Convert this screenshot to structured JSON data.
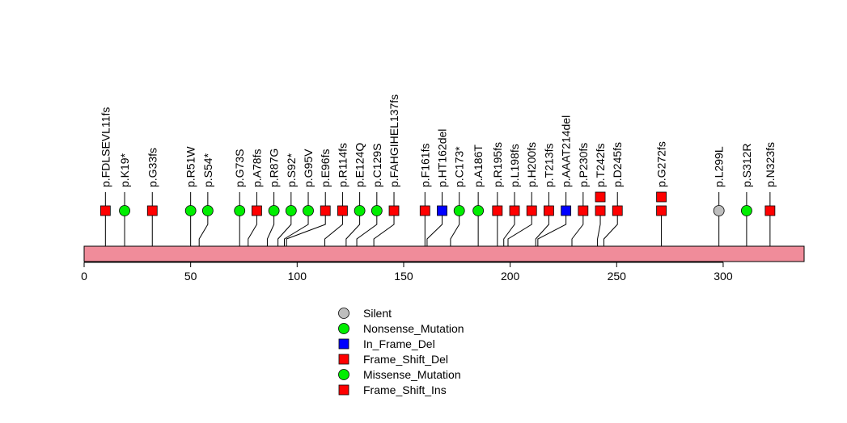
{
  "chart_data": {
    "type": "lollipop",
    "protein_length": 338,
    "x_axis": {
      "min": 0,
      "max": 338,
      "ticks": [
        0,
        50,
        100,
        150,
        200,
        250,
        300
      ]
    },
    "colors": {
      "protein_bar": "#f08c9a",
      "Silent": "#bebebe",
      "Nonsense_Mutation": "#00ee00",
      "In_Frame_Del": "#0000ff",
      "Frame_Shift_Del": "#ff0000",
      "Missense_Mutation": "#00ee00",
      "Frame_Shift_Ins": "#ff0000"
    },
    "mutations": [
      {
        "label": "p.FDLSEVL11fs",
        "position": 10,
        "type": "Frame_Shift_Del",
        "count": 1
      },
      {
        "label": "p.K19*",
        "position": 19,
        "type": "Nonsense_Mutation",
        "count": 1
      },
      {
        "label": "p.G33fs",
        "position": 32,
        "type": "Frame_Shift_Del",
        "count": 1
      },
      {
        "label": "p.R51W",
        "position": 50,
        "type": "Missense_Mutation",
        "count": 1
      },
      {
        "label": "p.S54*",
        "position": 54,
        "type": "Nonsense_Mutation",
        "count": 1
      },
      {
        "label": "p.G73S",
        "position": 73,
        "type": "Missense_Mutation",
        "count": 1
      },
      {
        "label": "p.A78fs",
        "position": 77,
        "type": "Frame_Shift_Del",
        "count": 1
      },
      {
        "label": "p.R87G",
        "position": 86,
        "type": "Missense_Mutation",
        "count": 1
      },
      {
        "label": "p.S92*",
        "position": 91,
        "type": "Nonsense_Mutation",
        "count": 1
      },
      {
        "label": "p.G95V",
        "position": 94,
        "type": "Missense_Mutation",
        "count": 1
      },
      {
        "label": "p.E96fs",
        "position": 95,
        "type": "Frame_Shift_Del",
        "count": 1
      },
      {
        "label": "p.R114fs",
        "position": 113,
        "type": "Frame_Shift_Del",
        "count": 1
      },
      {
        "label": "p.E124Q",
        "position": 123,
        "type": "Missense_Mutation",
        "count": 1
      },
      {
        "label": "p.C129S",
        "position": 128,
        "type": "Missense_Mutation",
        "count": 1
      },
      {
        "label": "p.FAHGIHEL137fs",
        "position": 136,
        "type": "Frame_Shift_Del",
        "count": 1
      },
      {
        "label": "p.F161fs",
        "position": 160,
        "type": "Frame_Shift_Del",
        "count": 1
      },
      {
        "label": "p.HT162del",
        "position": 161,
        "type": "In_Frame_Del",
        "count": 1
      },
      {
        "label": "p.C173*",
        "position": 172,
        "type": "Nonsense_Mutation",
        "count": 1
      },
      {
        "label": "p.A186T",
        "position": 185,
        "type": "Missense_Mutation",
        "count": 1
      },
      {
        "label": "p.R195fs",
        "position": 194,
        "type": "Frame_Shift_Del",
        "count": 1
      },
      {
        "label": "p.L198fs",
        "position": 197,
        "type": "Frame_Shift_Del",
        "count": 1
      },
      {
        "label": "p.H200fs",
        "position": 199,
        "type": "Frame_Shift_Del",
        "count": 1
      },
      {
        "label": "p.T213fs",
        "position": 212,
        "type": "Frame_Shift_Del",
        "count": 1
      },
      {
        "label": "p.AAAT214del",
        "position": 213,
        "type": "In_Frame_Del",
        "count": 1
      },
      {
        "label": "p.P230fs",
        "position": 229,
        "type": "Frame_Shift_Del",
        "count": 1
      },
      {
        "label": "p.T242fs",
        "position": 241,
        "type": "Frame_Shift_Del",
        "count": 2
      },
      {
        "label": "p.D245fs",
        "position": 244,
        "type": "Frame_Shift_Del",
        "count": 1
      },
      {
        "label": "p.G272fs",
        "position": 271,
        "type": "Frame_Shift_Del",
        "count": 2
      },
      {
        "label": "p.L299L",
        "position": 298,
        "type": "Silent",
        "count": 1
      },
      {
        "label": "p.S312R",
        "position": 311,
        "type": "Missense_Mutation",
        "count": 1
      },
      {
        "label": "p.N323fs",
        "position": 322,
        "type": "Frame_Shift_Del",
        "count": 1
      }
    ],
    "legend": [
      {
        "label": "Silent",
        "shape": "circle",
        "color": "#bebebe"
      },
      {
        "label": "Nonsense_Mutation",
        "shape": "circle",
        "color": "#00ee00"
      },
      {
        "label": "In_Frame_Del",
        "shape": "square",
        "color": "#0000ff"
      },
      {
        "label": "Frame_Shift_Del",
        "shape": "square",
        "color": "#ff0000"
      },
      {
        "label": "Missense_Mutation",
        "shape": "circle",
        "color": "#00ee00"
      },
      {
        "label": "Frame_Shift_Ins",
        "shape": "square",
        "color": "#ff0000"
      }
    ]
  }
}
